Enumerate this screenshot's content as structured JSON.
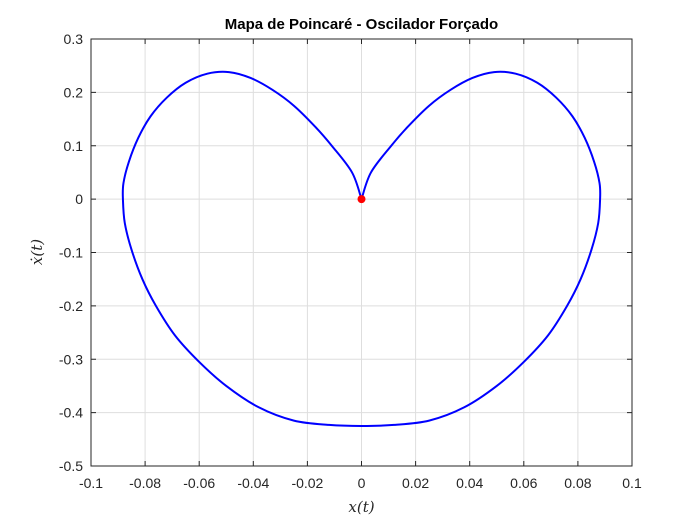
{
  "chart_data": {
    "type": "line",
    "title": "Mapa de Poincaré - Oscilador Forçado",
    "xlabel": "x(t)",
    "ylabel": "ẋ(t)",
    "xlim": [
      -0.1,
      0.1
    ],
    "ylim": [
      -0.5,
      0.3
    ],
    "xticks": [
      "-0.1",
      "-0.08",
      "-0.06",
      "-0.04",
      "-0.02",
      "0",
      "0.02",
      "0.04",
      "0.06",
      "0.08",
      "0.1"
    ],
    "yticks": [
      "0.3",
      "0.2",
      "0.1",
      "0",
      "-0.1",
      "-0.2",
      "-0.3",
      "-0.4",
      "-0.5"
    ],
    "grid": true,
    "series": [
      {
        "color": "#0000ff",
        "x": [
          0,
          -0.0035,
          -0.011,
          -0.017,
          -0.025,
          -0.033,
          -0.041,
          -0.049,
          -0.057,
          -0.065,
          -0.072,
          -0.078,
          -0.0825,
          -0.086,
          -0.088,
          -0.0882,
          -0.0875,
          -0.085,
          -0.081,
          -0.076,
          -0.069,
          -0.06,
          -0.05,
          -0.038,
          -0.025,
          -0.012,
          0,
          0.012,
          0.025,
          0.038,
          0.05,
          0.06,
          0.069,
          0.076,
          0.081,
          0.085,
          0.0875,
          0.0882,
          0.088,
          0.086,
          0.0825,
          0.078,
          0.072,
          0.065,
          0.057,
          0.049,
          0.041,
          0.033,
          0.025,
          0.017,
          0.011,
          0.0035,
          0
        ],
        "y": [
          0,
          0.05,
          0.1,
          0.135,
          0.175,
          0.205,
          0.227,
          0.238,
          0.235,
          0.218,
          0.19,
          0.155,
          0.115,
          0.07,
          0.03,
          0,
          -0.045,
          -0.095,
          -0.15,
          -0.2,
          -0.255,
          -0.305,
          -0.35,
          -0.39,
          -0.415,
          -0.423,
          -0.425,
          -0.423,
          -0.415,
          -0.39,
          -0.35,
          -0.305,
          -0.255,
          -0.2,
          -0.15,
          -0.095,
          -0.045,
          0,
          0.03,
          0.07,
          0.115,
          0.155,
          0.19,
          0.218,
          0.235,
          0.238,
          0.227,
          0.205,
          0.175,
          0.135,
          0.1,
          0.05,
          0
        ]
      }
    ],
    "marker": {
      "x": 0,
      "y": 0,
      "color": "#ff0000"
    }
  }
}
